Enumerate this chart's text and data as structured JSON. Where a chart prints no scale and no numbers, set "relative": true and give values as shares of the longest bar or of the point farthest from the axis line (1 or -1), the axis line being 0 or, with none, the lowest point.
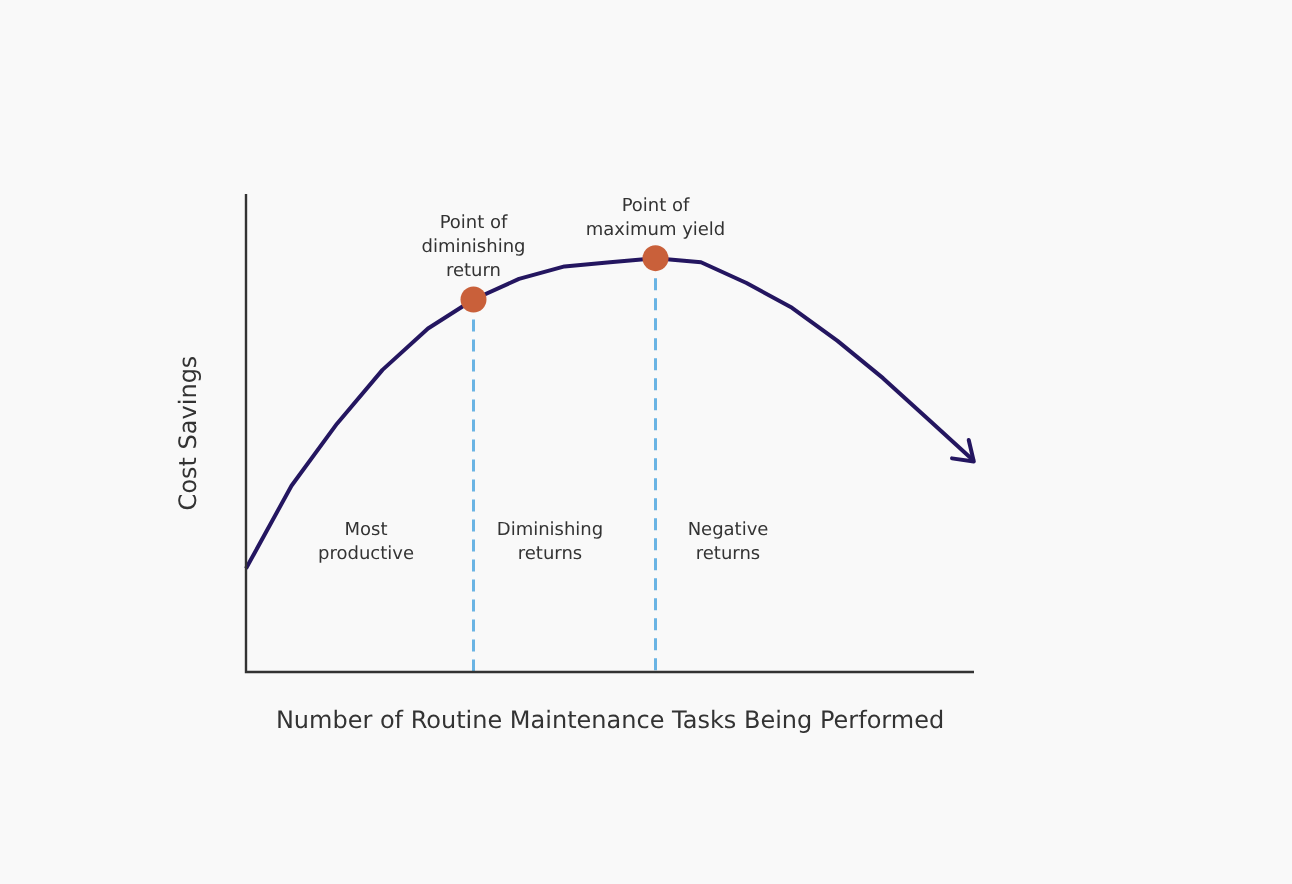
{
  "chart_data": {
    "type": "line",
    "relative": true,
    "xlabel": "Number of Routine Maintenance Tasks Being Performed",
    "ylabel": "Cost Savings",
    "categories": [
      null,
      null,
      null,
      null,
      null,
      null,
      null,
      null,
      null,
      null,
      null,
      null,
      null,
      null,
      null,
      null,
      null
    ],
    "series": [
      {
        "color": "#241660",
        "values": [
          0.25,
          0.45,
          0.6,
          0.73,
          0.83,
          0.9,
          0.95,
          0.98,
          0.99,
          1,
          0.99,
          0.94,
          0.88,
          0.8,
          0.71,
          0.61,
          0.51
        ]
      }
    ],
    "annotations": [
      {
        "text": "Point of\ndiminishing\nreturn",
        "y": 0.9
      },
      {
        "text": "Point of\nmaximum yield",
        "y": 1
      },
      "Most\nproductive",
      "Diminishing\nreturns",
      "Negative\nreturns"
    ],
    "marker": "none",
    "line_style": "solid"
  }
}
